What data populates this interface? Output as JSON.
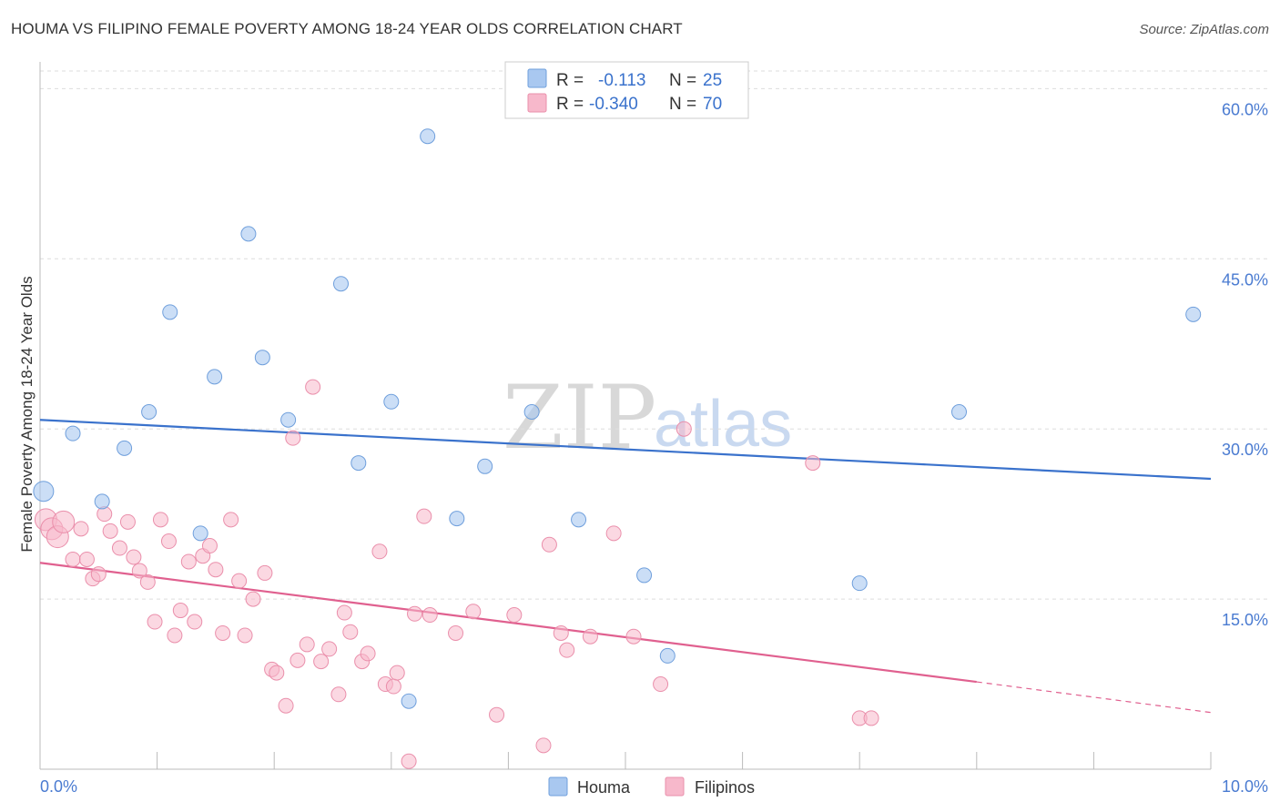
{
  "header": {
    "title": "HOUMA VS FILIPINO FEMALE POVERTY AMONG 18-24 YEAR OLDS CORRELATION CHART",
    "source": "Source: ZipAtlas.com"
  },
  "watermark": {
    "zip": "ZIP",
    "atlas": "atlas"
  },
  "legend": {
    "houma": {
      "r_label": "R =",
      "r_value": "-0.113",
      "n_label": "N =",
      "n_value": "25"
    },
    "filipinos": {
      "r_label": "R =",
      "r_value": "-0.340",
      "n_label": "N =",
      "n_value": "70"
    }
  },
  "bottom_legend": {
    "houma": "Houma",
    "filipinos": "Filipinos"
  },
  "colors": {
    "houma_fill": "#a9c8f0",
    "houma_stroke": "#6f9fdc",
    "houma_line": "#3a72cc",
    "filipinos_fill": "#f7b8cb",
    "filipinos_stroke": "#ea8fab",
    "filipinos_line": "#e0608f",
    "tick_text": "#4a7bd1",
    "grid": "#dddddd"
  },
  "chart_data": {
    "type": "scatter",
    "title": "HOUMA VS FILIPINO FEMALE POVERTY AMONG 18-24 YEAR OLDS CORRELATION CHART",
    "xlabel": "",
    "ylabel": "Female Poverty Among 18-24 Year Olds",
    "xlim": [
      0,
      10
    ],
    "ylim": [
      0,
      63
    ],
    "x_tick_labels": [
      "0.0%",
      "10.0%"
    ],
    "y_ticks": [
      15,
      30,
      45,
      60
    ],
    "y_tick_labels": [
      "15.0%",
      "30.0%",
      "45.0%",
      "60.0%"
    ],
    "grid": true,
    "legend_position": "top-center",
    "series": [
      {
        "name": "Houma",
        "points": [
          [
            0.03,
            24.5
          ],
          [
            0.28,
            29.6
          ],
          [
            0.53,
            23.6
          ],
          [
            0.72,
            28.3
          ],
          [
            0.93,
            31.5
          ],
          [
            1.11,
            40.3
          ],
          [
            1.37,
            20.8
          ],
          [
            1.49,
            34.6
          ],
          [
            1.78,
            47.2
          ],
          [
            1.9,
            36.3
          ],
          [
            2.12,
            30.8
          ],
          [
            2.57,
            42.8
          ],
          [
            2.72,
            27.0
          ],
          [
            3.0,
            32.4
          ],
          [
            3.15,
            6.0
          ],
          [
            3.31,
            55.8
          ],
          [
            3.56,
            22.1
          ],
          [
            3.8,
            26.7
          ],
          [
            4.2,
            31.5
          ],
          [
            4.6,
            22.0
          ],
          [
            5.16,
            17.1
          ],
          [
            5.36,
            10.0
          ],
          [
            7.0,
            16.4
          ],
          [
            7.85,
            31.5
          ],
          [
            9.85,
            40.1
          ]
        ],
        "trend": {
          "x": [
            0,
            10
          ],
          "y": [
            30.8,
            25.6
          ]
        }
      },
      {
        "name": "Filipinos",
        "points": [
          [
            0.05,
            22.0
          ],
          [
            0.1,
            21.2
          ],
          [
            0.15,
            20.5
          ],
          [
            0.2,
            21.8
          ],
          [
            0.28,
            18.5
          ],
          [
            0.35,
            21.2
          ],
          [
            0.4,
            18.5
          ],
          [
            0.45,
            16.8
          ],
          [
            0.5,
            17.2
          ],
          [
            0.55,
            22.5
          ],
          [
            0.6,
            21.0
          ],
          [
            0.68,
            19.5
          ],
          [
            0.75,
            21.8
          ],
          [
            0.8,
            18.7
          ],
          [
            0.85,
            17.5
          ],
          [
            0.92,
            16.5
          ],
          [
            0.98,
            13.0
          ],
          [
            1.03,
            22.0
          ],
          [
            1.1,
            20.1
          ],
          [
            1.15,
            11.8
          ],
          [
            1.2,
            14.0
          ],
          [
            1.27,
            18.3
          ],
          [
            1.32,
            13.0
          ],
          [
            1.39,
            18.8
          ],
          [
            1.45,
            19.7
          ],
          [
            1.5,
            17.6
          ],
          [
            1.56,
            12.0
          ],
          [
            1.63,
            22.0
          ],
          [
            1.7,
            16.6
          ],
          [
            1.75,
            11.8
          ],
          [
            1.82,
            15.0
          ],
          [
            1.92,
            17.3
          ],
          [
            1.98,
            8.8
          ],
          [
            2.02,
            8.5
          ],
          [
            2.1,
            5.6
          ],
          [
            2.16,
            29.2
          ],
          [
            2.2,
            9.6
          ],
          [
            2.28,
            11.0
          ],
          [
            2.33,
            33.7
          ],
          [
            2.4,
            9.5
          ],
          [
            2.47,
            10.6
          ],
          [
            2.55,
            6.6
          ],
          [
            2.6,
            13.8
          ],
          [
            2.65,
            12.1
          ],
          [
            2.75,
            9.5
          ],
          [
            2.8,
            10.2
          ],
          [
            2.9,
            19.2
          ],
          [
            2.95,
            7.5
          ],
          [
            3.02,
            7.3
          ],
          [
            3.05,
            8.5
          ],
          [
            3.15,
            0.7
          ],
          [
            3.2,
            13.7
          ],
          [
            3.28,
            22.3
          ],
          [
            3.33,
            13.6
          ],
          [
            3.55,
            12.0
          ],
          [
            3.7,
            13.9
          ],
          [
            3.9,
            4.8
          ],
          [
            4.05,
            13.6
          ],
          [
            4.3,
            2.1
          ],
          [
            4.35,
            19.8
          ],
          [
            4.45,
            12.0
          ],
          [
            4.5,
            10.5
          ],
          [
            4.7,
            11.7
          ],
          [
            4.9,
            20.8
          ],
          [
            5.07,
            11.7
          ],
          [
            5.3,
            7.5
          ],
          [
            5.5,
            30.0
          ],
          [
            6.6,
            27.0
          ],
          [
            7.0,
            4.5
          ],
          [
            7.1,
            4.5
          ]
        ],
        "trend": {
          "x": [
            0,
            8.0
          ],
          "y": [
            18.2,
            7.7
          ]
        },
        "trend_extension": {
          "x": [
            8.0,
            10
          ],
          "y": [
            7.7,
            5.0
          ]
        }
      }
    ]
  }
}
